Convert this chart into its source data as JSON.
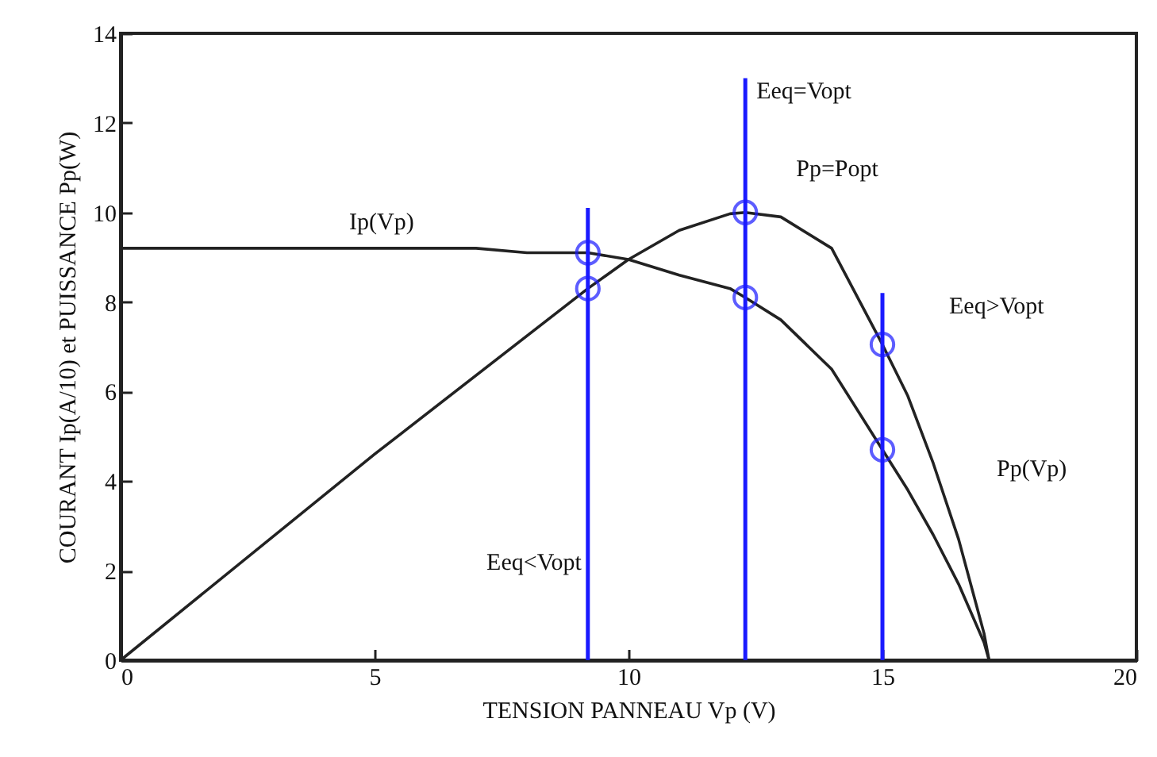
{
  "chart_data": {
    "type": "line",
    "xlabel": "TENSION PANNEAU  Vp (V)",
    "ylabel": "COURANT Ip(A/10)  et  PUISSANCE Pp(W)",
    "xlim": [
      0,
      20
    ],
    "xticks": [
      0,
      5,
      10,
      15,
      20
    ],
    "ylim": [
      0,
      14
    ],
    "yticks": [
      0,
      2,
      4,
      6,
      8,
      10,
      12,
      14
    ],
    "grid": false,
    "line_style": "solid",
    "series": [
      {
        "color": "#222222",
        "marker": "none",
        "x": [
          0,
          2,
          4,
          6,
          7,
          8,
          9,
          9.2,
          10,
          11,
          12,
          12.3,
          13,
          14,
          15,
          15.5,
          16,
          16.5,
          17,
          17.1
        ],
        "values": [
          9.2,
          9.2,
          9.2,
          9.2,
          9.2,
          9.1,
          9.1,
          9.1,
          8.95,
          8.6,
          8.3,
          8.1,
          7.6,
          6.5,
          4.7,
          3.8,
          2.8,
          1.7,
          0.4,
          0
        ]
      },
      {
        "color": "#222222",
        "marker": "none",
        "x": [
          0,
          5,
          9.2,
          10,
          11,
          12,
          12.3,
          13,
          14,
          15,
          15.5,
          16,
          16.5,
          17,
          17.1
        ],
        "values": [
          0,
          4.6,
          8.3,
          8.95,
          9.6,
          9.97,
          10.0,
          9.9,
          9.2,
          7.05,
          5.9,
          4.4,
          2.7,
          0.6,
          0
        ]
      },
      {
        "color": "#1a1aff",
        "marker": "none",
        "x": [
          9.2,
          9.2
        ],
        "values": [
          0,
          10.1
        ]
      },
      {
        "color": "#1a1aff",
        "marker": "none",
        "x": [
          12.3,
          12.3
        ],
        "values": [
          0,
          13.0
        ]
      },
      {
        "color": "#1a1aff",
        "marker": "none",
        "x": [
          15,
          15
        ],
        "values": [
          0,
          8.2
        ]
      },
      {
        "type": "scatter",
        "color": "#1a1aff",
        "marker": "circle",
        "x": [
          9.2,
          9.2,
          12.3,
          12.3,
          15,
          15
        ],
        "values": [
          9.1,
          8.3,
          10.0,
          8.1,
          7.05,
          4.7
        ]
      }
    ],
    "annotations": [
      {
        "text": "Ip(Vp)",
        "x": 4,
        "y": 9.2
      },
      {
        "text": "Eeq=Vopt",
        "x": 12.3,
        "y": 13.0
      },
      {
        "text": "Pp=Popt",
        "x": 12.3,
        "y": 10.0
      },
      {
        "text": "Eeq>Vopt",
        "x": 15,
        "y": 8.2
      },
      {
        "text": "Pp(Vp)",
        "x": 16,
        "y": 4.4
      },
      {
        "text": "Eeq<Vopt",
        "x": 9.2,
        "y": 2.2
      }
    ]
  }
}
